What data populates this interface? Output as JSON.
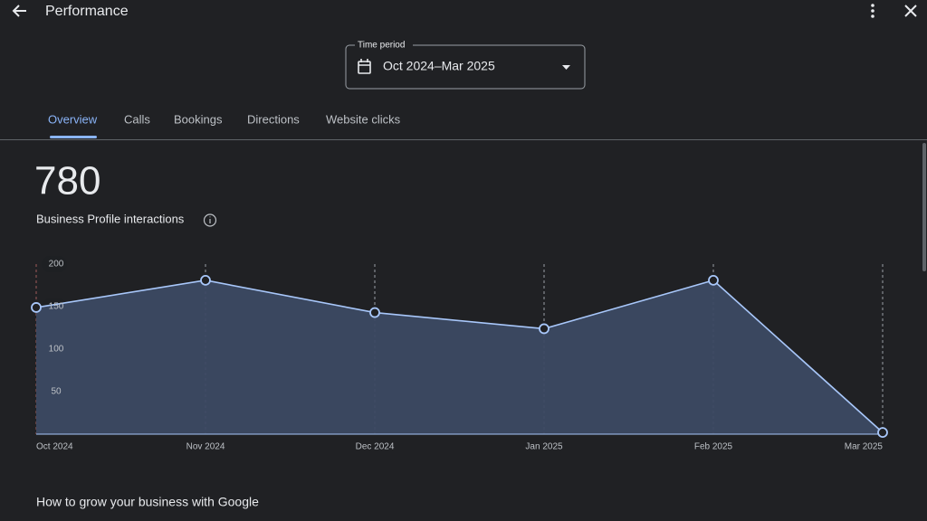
{
  "header": {
    "title": "Performance"
  },
  "time_period": {
    "label": "Time period",
    "value": "Oct 2024–Mar 2025"
  },
  "tabs": [
    "Overview",
    "Calls",
    "Bookings",
    "Directions",
    "Website clicks"
  ],
  "summary": {
    "total": 780,
    "label": "Business Profile interactions"
  },
  "chart_data": {
    "type": "area",
    "categories": [
      "Oct 2024",
      "Nov 2024",
      "Dec 2024",
      "Jan 2025",
      "Feb 2025",
      "Mar 2025"
    ],
    "values": [
      149,
      181,
      143,
      124,
      181,
      2
    ],
    "color": "#a8c7fa",
    "ylim": [
      0,
      200
    ],
    "yticks": [
      50,
      100,
      150,
      200
    ],
    "grid": true
  },
  "footer": {
    "heading": "How to grow your business with Google"
  }
}
